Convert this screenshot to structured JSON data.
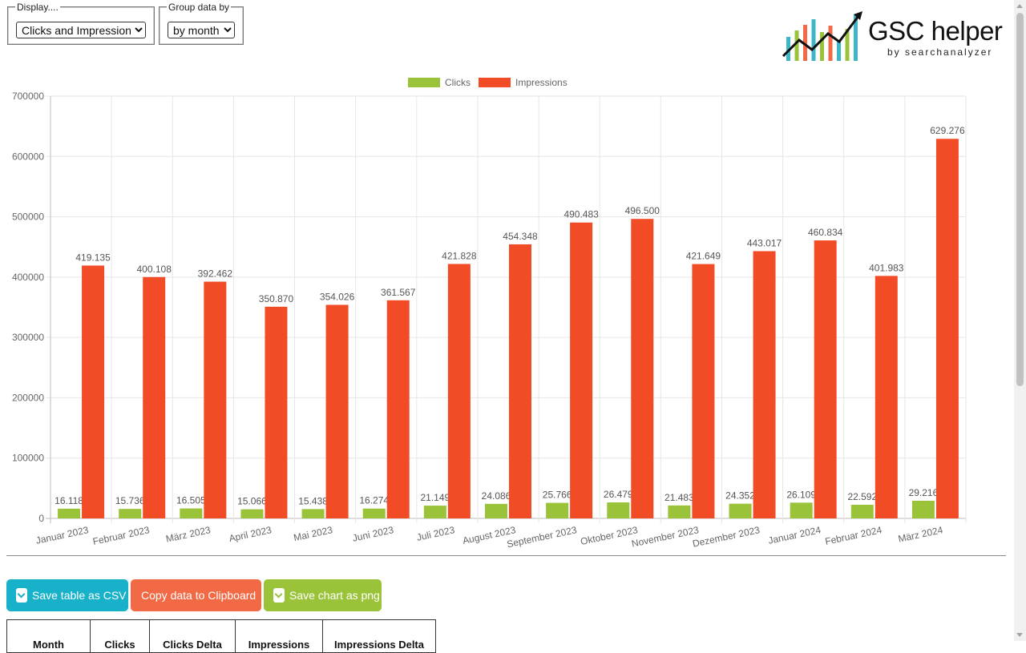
{
  "controls": {
    "display_legend": "Display....",
    "display_selected": "Clicks and Impressions",
    "group_legend": "Group data by",
    "group_selected": "by month"
  },
  "logo": {
    "title": "GSC helper",
    "subtitle": "by searchanalyzer",
    "bar_colors": [
      "#3fb6c8",
      "#9ac33a",
      "#f26a45",
      "#3fb6c8",
      "#9ac33a",
      "#f26a45",
      "#3fb6c8",
      "#9ac33a",
      "#3fb6c8"
    ]
  },
  "chart_data": {
    "type": "bar",
    "categories": [
      "Januar 2023",
      "Februar 2023",
      "März 2023",
      "April 2023",
      "Mai 2023",
      "Juni 2023",
      "Juli 2023",
      "August 2023",
      "September 2023",
      "Oktober 2023",
      "November 2023",
      "Dezember 2023",
      "Januar 2024",
      "Februar 2024",
      "März 2024"
    ],
    "series": [
      {
        "name": "Clicks",
        "color": "#9ac33a",
        "values": [
          16118,
          15736,
          16505,
          15066,
          15438,
          16274,
          21149,
          24086,
          25766,
          26479,
          21483,
          24352,
          26109,
          22592,
          29216
        ],
        "labels": [
          "16.118",
          "15.736",
          "16.505",
          "15.066",
          "15.438",
          "16.274",
          "21.149",
          "24.086",
          "25.766",
          "26.479",
          "21.483",
          "24.352",
          "26.109",
          "22.592",
          "29.216"
        ]
      },
      {
        "name": "Impressions",
        "color": "#f24c27",
        "values": [
          419135,
          400108,
          392462,
          350870,
          354026,
          361567,
          421828,
          454348,
          490483,
          496500,
          421649,
          443017,
          460834,
          401983,
          629276
        ],
        "labels": [
          "419.135",
          "400.108",
          "392.462",
          "350.870",
          "354.026",
          "361.567",
          "421.828",
          "454.348",
          "490.483",
          "496.500",
          "421.649",
          "443.017",
          "460.834",
          "401.983",
          "629.276"
        ]
      }
    ],
    "y_ticks": [
      "0",
      "100000",
      "200000",
      "300000",
      "400000",
      "500000",
      "600000",
      "700000"
    ],
    "ylim": [
      0,
      700000
    ],
    "grid": true,
    "legend_position": "top-center",
    "title": "",
    "xlabel": "",
    "ylabel": ""
  },
  "buttons": {
    "csv": "Save table as CSV",
    "copy": "Copy data to Clipboard",
    "png": "Save chart as png"
  },
  "table": {
    "headers": [
      "Month",
      "Clicks",
      "Clicks Delta",
      "Impressions",
      "Impressions Delta"
    ]
  }
}
